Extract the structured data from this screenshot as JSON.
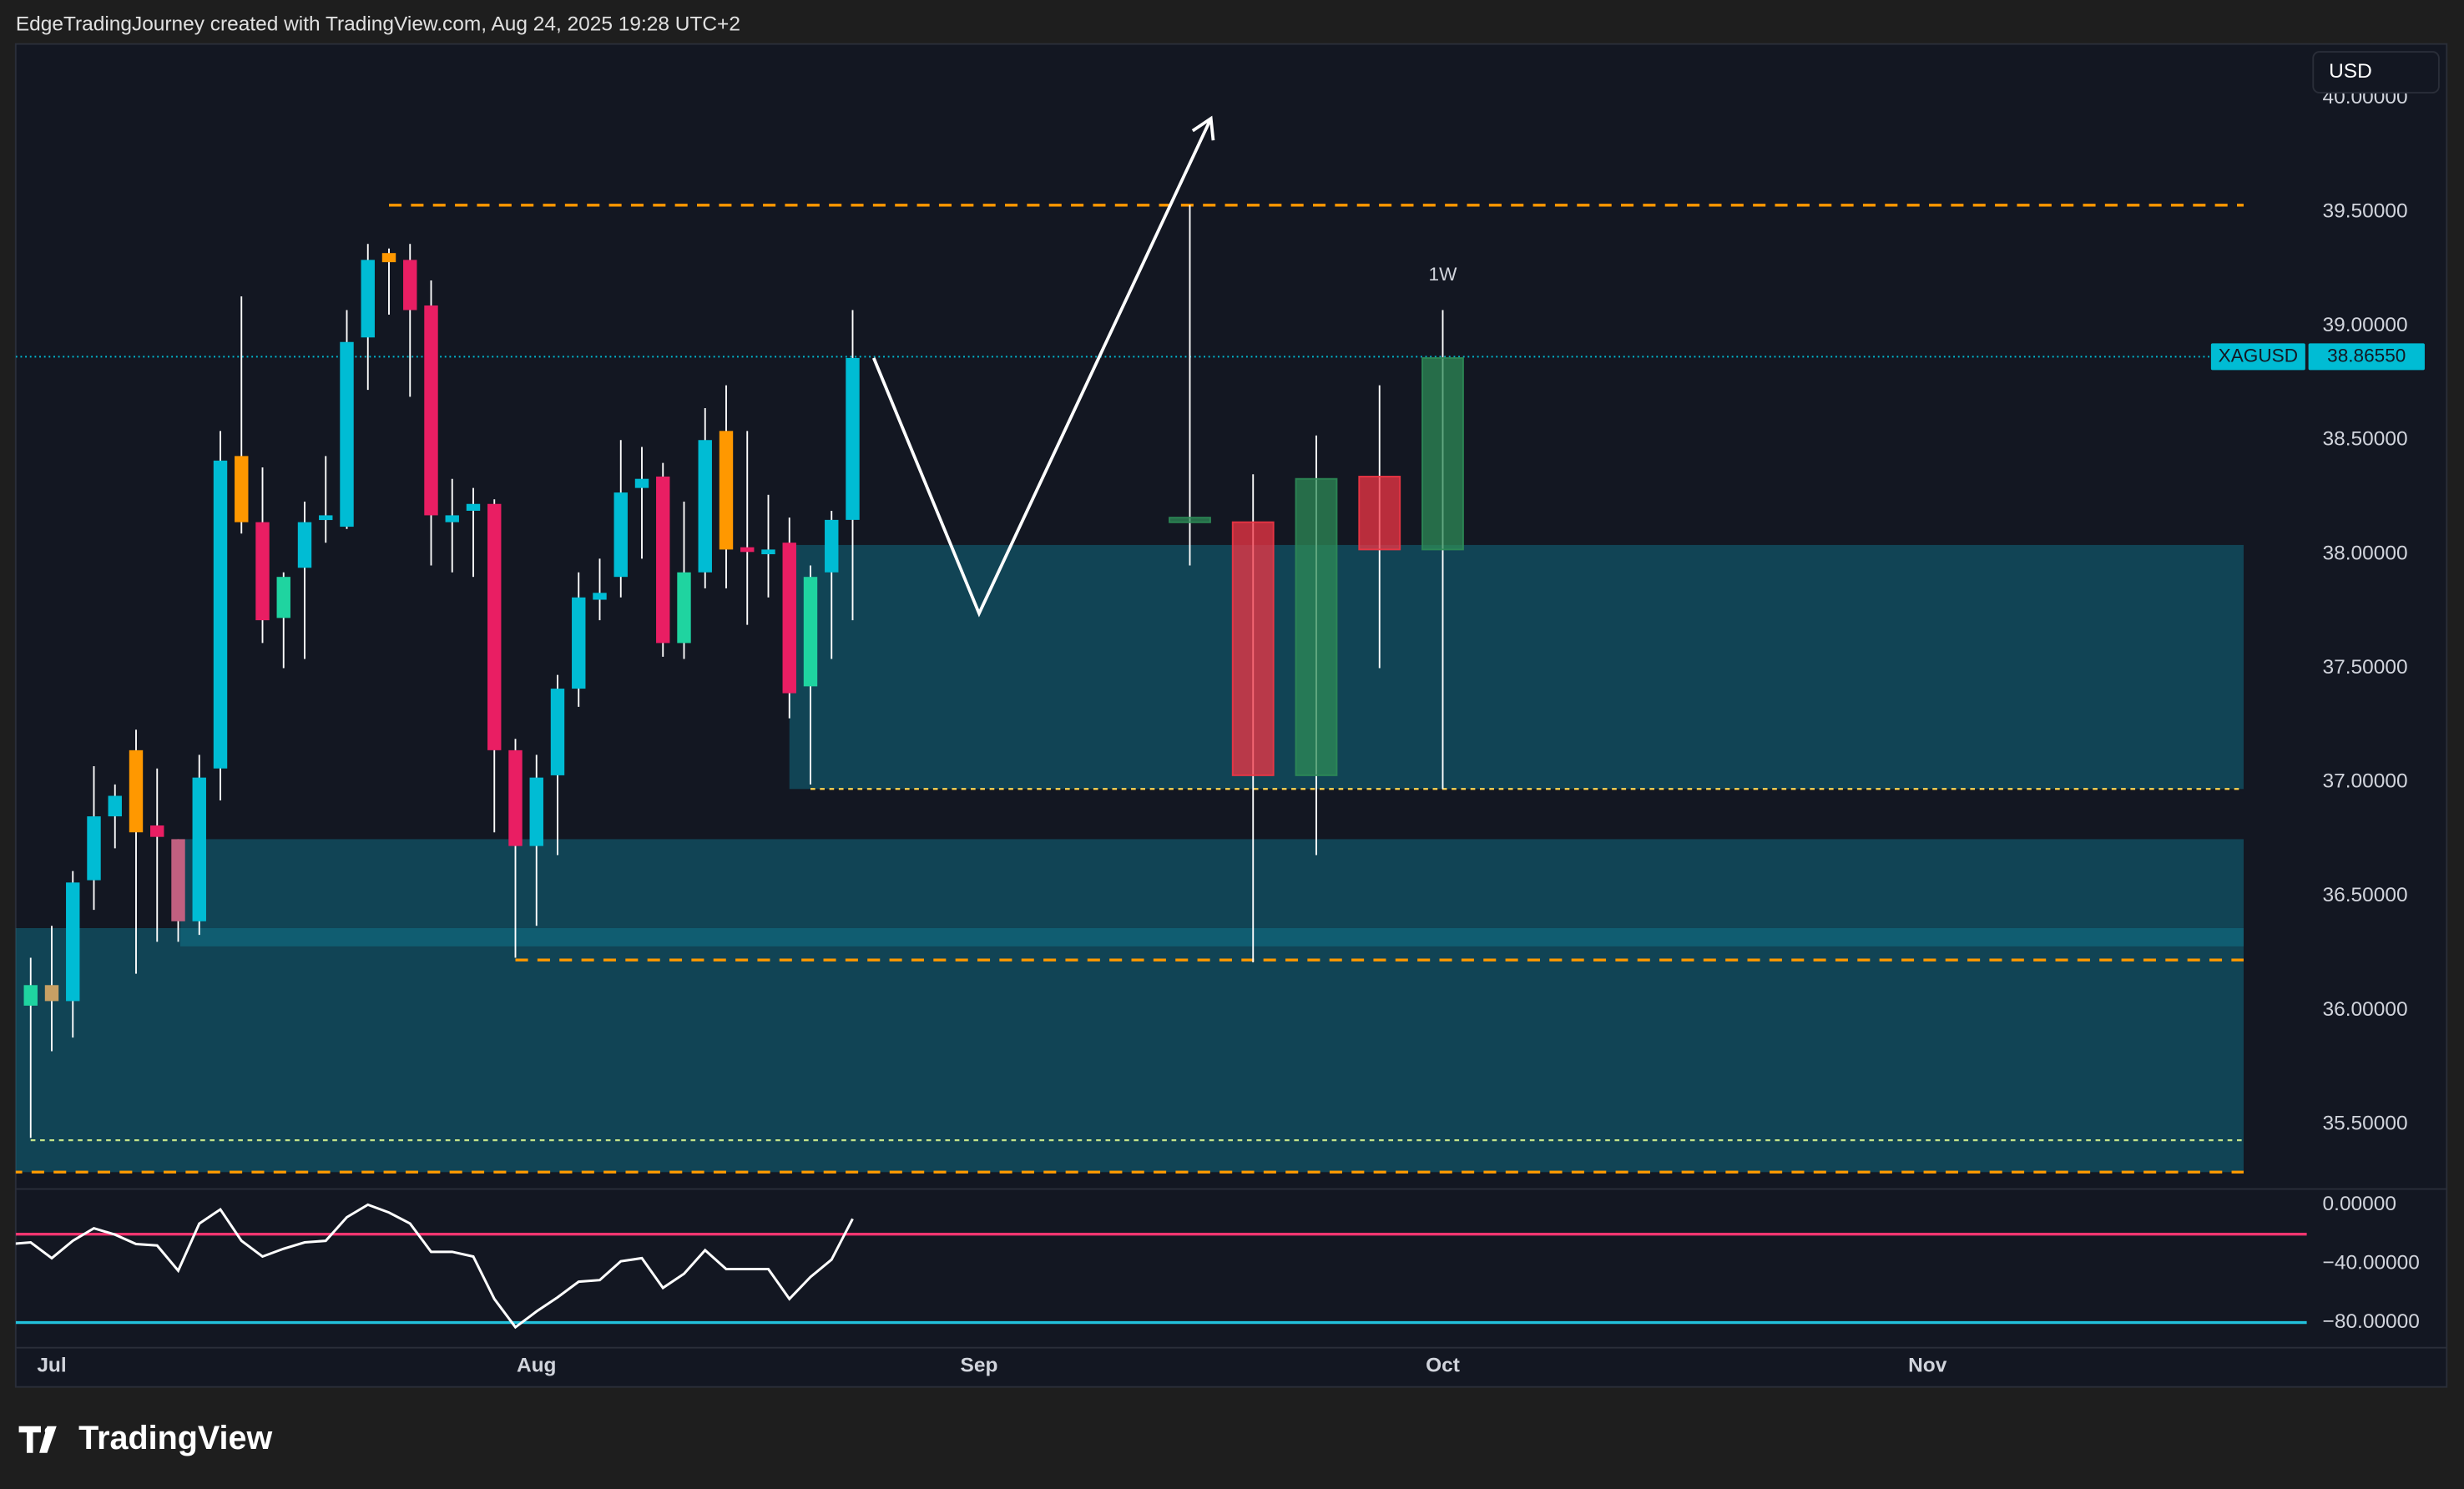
{
  "header": "EdgeTradingJourney created with TradingView.com, Aug 24, 2025 19:28 UTC+2",
  "footer": "TradingView",
  "chart_data": [
    {
      "type": "candlestick",
      "currency": "USD",
      "symbol": "XAGUSD",
      "last_price": {
        "value": 38.8655,
        "label": "38.86550"
      },
      "xlim": [
        -1.71,
        107
      ],
      "xticks": [
        {
          "value": 0,
          "label": "Jul"
        },
        {
          "value": 23,
          "label": "Aug"
        },
        {
          "value": 44,
          "label": "Sep"
        },
        {
          "value": 66,
          "label": "Oct"
        },
        {
          "value": 89,
          "label": "Nov"
        }
      ],
      "ylim": [
        35.216,
        40.223
      ],
      "yticks": [
        {
          "value": 35.5,
          "label": "35.50000"
        },
        {
          "value": 36,
          "label": "36.00000"
        },
        {
          "value": 36.5,
          "label": "36.50000"
        },
        {
          "value": 37,
          "label": "37.00000"
        },
        {
          "value": 37.5,
          "label": "37.50000"
        },
        {
          "value": 38,
          "label": "38.00000"
        },
        {
          "value": 38.5,
          "label": "38.50000"
        },
        {
          "value": 39,
          "label": "39.00000"
        },
        {
          "value": 39.5,
          "label": "39.50000"
        },
        {
          "value": 40,
          "label": "40.00000"
        }
      ],
      "grid": false,
      "x": [
        -1,
        0,
        1,
        2,
        3,
        4,
        5,
        6,
        7,
        8,
        9,
        10,
        11,
        12,
        13,
        14,
        15,
        16,
        17,
        18,
        19,
        20,
        21,
        22,
        23,
        24,
        25,
        26,
        27,
        28,
        29,
        30,
        31,
        32,
        33,
        34,
        35,
        36,
        37,
        38
      ],
      "open": [
        36.02,
        36.04,
        36.04,
        36.57,
        36.85,
        37.14,
        36.81,
        36.75,
        36.39,
        37.06,
        38.43,
        38.14,
        37.72,
        37.94,
        38.16,
        38.12,
        38.95,
        39.32,
        39.29,
        39.09,
        38.14,
        38.19,
        38.22,
        37.14,
        36.72,
        37.03,
        37.41,
        37.8,
        37.9,
        38.29,
        38.34,
        37.61,
        37.92,
        38.54,
        38.03,
        38.01,
        38.05,
        37.42,
        37.92,
        38.15
      ],
      "high": [
        36.23,
        36.37,
        36.61,
        37.07,
        36.99,
        37.23,
        37.06,
        36.75,
        37.12,
        38.54,
        39.13,
        38.38,
        37.92,
        38.23,
        38.43,
        39.07,
        39.36,
        39.34,
        39.36,
        39.2,
        38.33,
        38.29,
        38.24,
        37.19,
        37.12,
        37.47,
        37.92,
        37.98,
        38.5,
        38.47,
        38.4,
        38.23,
        38.64,
        38.74,
        38.54,
        38.26,
        38.16,
        37.95,
        38.19,
        39.07
      ],
      "low": [
        35.44,
        35.82,
        35.88,
        36.44,
        36.71,
        36.16,
        36.3,
        36.3,
        36.33,
        36.92,
        38.09,
        37.61,
        37.5,
        37.54,
        38.05,
        38.11,
        38.72,
        39.05,
        38.69,
        37.95,
        37.92,
        37.9,
        36.78,
        36.23,
        36.37,
        36.68,
        37.33,
        37.71,
        37.81,
        37.98,
        37.55,
        37.54,
        37.85,
        37.85,
        37.69,
        37.81,
        37.28,
        36.99,
        37.54,
        37.71
      ],
      "close": [
        36.11,
        36.11,
        36.56,
        36.85,
        36.94,
        36.78,
        36.76,
        36.39,
        37.02,
        38.41,
        38.14,
        37.71,
        37.9,
        38.14,
        38.17,
        38.93,
        39.29,
        39.28,
        39.07,
        38.17,
        38.17,
        38.22,
        37.14,
        36.72,
        37.02,
        37.41,
        37.81,
        37.83,
        38.27,
        38.33,
        37.61,
        37.92,
        38.5,
        38.02,
        38.02,
        38.02,
        37.39,
        37.9,
        38.15,
        38.86
      ],
      "colors": [
        "#1fd4a0",
        "#c8a064",
        "#00bcd4",
        "#00bcd4",
        "#00bcd4",
        "#ff9800",
        "#e91e63",
        "#c06080",
        "#00bcd4",
        "#00bcd4",
        "#ff9800",
        "#e91e63",
        "#1fd4a0",
        "#00bcd4",
        "#00bcd4",
        "#00bcd4",
        "#00bcd4",
        "#ff9800",
        "#e91e63",
        "#e91e63",
        "#00bcd4",
        "#00bcd4",
        "#e91e63",
        "#e91e63",
        "#00bcd4",
        "#00bcd4",
        "#00bcd4",
        "#00bcd4",
        "#00bcd4",
        "#00bcd4",
        "#e91e63",
        "#1fd4a0",
        "#00bcd4",
        "#ff9800",
        "#e91e63",
        "#00bcd4",
        "#e91e63",
        "#1fd4a0",
        "#00bcd4",
        "#00bcd4"
      ],
      "weekly": {
        "label": "1W",
        "x": [
          54,
          57,
          60,
          63,
          66
        ],
        "open": [
          38.14,
          38.14,
          37.03,
          38.34,
          38.02
        ],
        "high": [
          39.53,
          38.35,
          38.52,
          38.74,
          39.07
        ],
        "low": [
          37.95,
          36.21,
          36.68,
          37.5,
          36.97
        ],
        "close": [
          38.16,
          37.03,
          38.33,
          38.02,
          38.86
        ],
        "colors": [
          "#2e8b57",
          "#f23645",
          "#2e8b57",
          "#f23645",
          "#2e8b57"
        ]
      },
      "zones": [
        {
          "top": 38.04,
          "bottom": 36.97,
          "x": [
            35,
            104
          ]
        },
        {
          "top": 36.75,
          "bottom": 36.28,
          "x": [
            6.1,
            104
          ]
        },
        {
          "top": 36.36,
          "bottom": 35.29,
          "x": [
            -2,
            104
          ]
        }
      ],
      "levels": [
        {
          "value": 39.53,
          "x": [
            16,
            104
          ],
          "color": "#ff9800",
          "style": "dashed"
        },
        {
          "value": 36.22,
          "x": [
            22,
            104
          ],
          "color": "#ff9800",
          "style": "dashed"
        },
        {
          "value": 35.29,
          "x": [
            -2,
            104
          ],
          "color": "#ff9800",
          "style": "dashed"
        },
        {
          "value": 36.97,
          "x": [
            36,
            104
          ],
          "color": "#ffd54f",
          "style": "dotted"
        },
        {
          "value": 35.43,
          "x": [
            -1,
            104
          ],
          "color": "#c6e48b",
          "style": "dotted"
        }
      ],
      "arrow": {
        "x": [
          39,
          44,
          55
        ],
        "y": [
          38.86,
          37.74,
          39.91
        ]
      }
    },
    {
      "type": "line",
      "xlim": [
        -1.71,
        107
      ],
      "ylim": [
        -97.07,
        10.67
      ],
      "yticks": [
        0,
        {
          "value": -40,
          "label": "−40.00000"
        },
        {
          "value": -80,
          "label": "−80.00000"
        }
      ],
      "ytick_zero_label": "0.00000",
      "levels": [
        {
          "value": -20,
          "color": "#f23670"
        },
        {
          "value": -80,
          "color": "#22c1dc"
        }
      ],
      "series": [
        {
          "color": "#ffffff",
          "x": [
            -2,
            -1,
            0,
            1,
            2,
            3,
            4,
            5,
            6,
            7,
            8,
            9,
            10,
            11,
            12,
            13,
            14,
            15,
            16,
            17,
            18,
            19,
            20,
            21,
            22,
            23,
            24,
            25,
            26,
            27,
            28,
            29,
            30,
            31,
            32,
            33,
            34,
            35,
            36,
            37,
            38
          ],
          "values": [
            -26.7,
            -25.6,
            -36.3,
            -24.5,
            -16,
            -20.3,
            -26.7,
            -27.7,
            -44.8,
            -12.8,
            -3.2,
            -24.5,
            -35.2,
            -29.9,
            -25.6,
            -24.5,
            -8.5,
            0,
            -5.3,
            -12.8,
            -32,
            -32,
            -35.2,
            -64,
            -83.2,
            -72.5,
            -62.9,
            -52.3,
            -51.2,
            -38.4,
            -36.3,
            -56.5,
            -46.9,
            -30.9,
            -43.7,
            -43.7,
            -43.7,
            -64,
            -49.1,
            -37.3,
            -9.6
          ]
        }
      ]
    }
  ]
}
